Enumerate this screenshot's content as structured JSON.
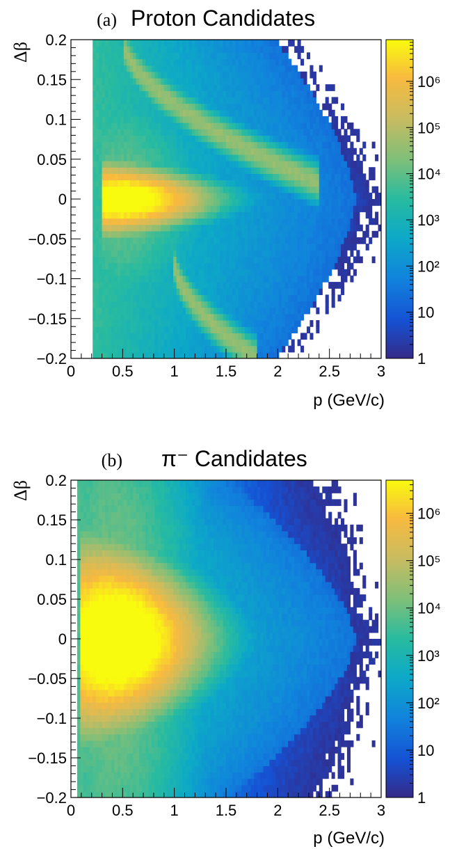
{
  "chart_data": [
    {
      "type": "heatmap",
      "panel_tag": "(a)",
      "title": "Proton Candidates",
      "xlabel": "p (GeV/c)",
      "ylabel": "Δβ",
      "xlim": [
        0,
        3
      ],
      "ylim": [
        -0.2,
        0.2
      ],
      "x_ticks": [
        "0",
        "0.5",
        "1",
        "1.5",
        "2",
        "2.5",
        "3"
      ],
      "y_ticks": [
        "−0.2",
        "−0.15",
        "−0.1",
        "−0.05",
        "0",
        "0.05",
        "0.1",
        "0.15",
        "0.2"
      ],
      "colorbar": {
        "scale": "log",
        "range": [
          1,
          8000000
        ],
        "tick_labels": [
          "1",
          "10",
          "10²",
          "10³",
          "10⁴",
          "10⁵",
          "10⁶"
        ]
      },
      "bands": [
        {
          "kind": "peak",
          "p_start": 0.3,
          "p_peak": 0.5,
          "p_end": 2.7,
          "dbeta_center": 0.0,
          "dbeta_halfwidth_at_start": 0.04,
          "log10_peak": 6.6
        },
        {
          "kind": "ridge",
          "p_start": 0.5,
          "p_end": 2.4,
          "dbeta_at_start": 0.2,
          "dbeta_at_end": 0.02,
          "log10_peak": 4.6
        },
        {
          "kind": "ridge",
          "p_start": 1.0,
          "p_end": 1.8,
          "dbeta_at_start": -0.08,
          "dbeta_at_end": -0.2,
          "log10_peak": 4.6
        }
      ],
      "p_min_detected": 0.22
    },
    {
      "type": "heatmap",
      "panel_tag": "(b)",
      "title": "π⁻ Candidates",
      "xlabel": "p (GeV/c)",
      "ylabel": "Δβ",
      "xlim": [
        0,
        3
      ],
      "ylim": [
        -0.2,
        0.2
      ],
      "x_ticks": [
        "0",
        "0.5",
        "1",
        "1.5",
        "2",
        "2.5",
        "3"
      ],
      "y_ticks": [
        "−0.2",
        "−0.15",
        "−0.1",
        "−0.05",
        "0",
        "0.05",
        "0.1",
        "0.15",
        "0.2"
      ],
      "colorbar": {
        "scale": "log",
        "range": [
          1,
          5000000
        ],
        "tick_labels": [
          "1",
          "10",
          "10²",
          "10³",
          "10⁴",
          "10⁵",
          "10⁶"
        ]
      },
      "bands": [
        {
          "kind": "peak",
          "p_start": 0.08,
          "p_peak": 0.45,
          "p_end": 2.6,
          "dbeta_center": 0.0,
          "dbeta_halfwidth_at_start": 0.12,
          "log10_peak": 6.7
        }
      ],
      "p_min_detected": 0.05
    }
  ]
}
